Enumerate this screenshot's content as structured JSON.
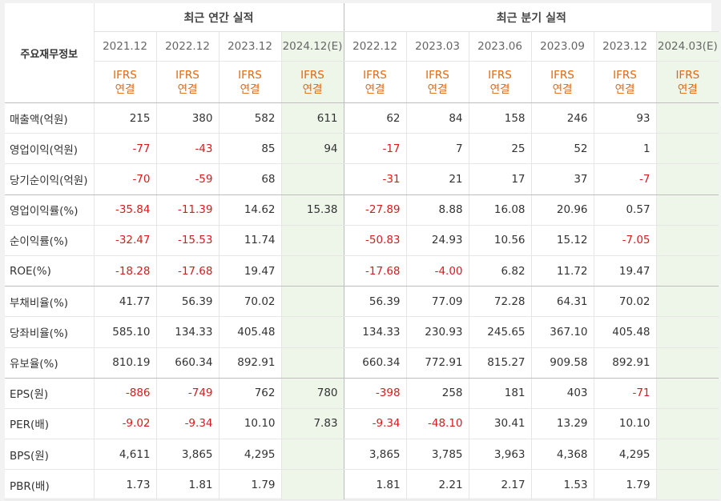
{
  "header": {
    "corner_label": "주요재무정보",
    "annual_title": "최근 연간 실적",
    "quarterly_title": "최근 분기 실적",
    "annual_periods": [
      "2021.12",
      "2022.12",
      "2023.12",
      "2024.12(E)"
    ],
    "quarterly_periods": [
      "2022.12",
      "2023.03",
      "2023.06",
      "2023.09",
      "2023.12",
      "2024.03(E)"
    ],
    "ifrs_line1": "IFRS",
    "ifrs_line2": "연결"
  },
  "colors": {
    "negative": "#d21e1e",
    "ifrs": "#e2660b",
    "estimate_bg": "#eef6ea"
  },
  "rows": [
    {
      "label": "매출액(억원)",
      "values": [
        "215",
        "380",
        "582",
        "611",
        "62",
        "84",
        "158",
        "246",
        "93",
        ""
      ]
    },
    {
      "label": "영업이익(억원)",
      "values": [
        "-77",
        "-43",
        "85",
        "94",
        "-17",
        "7",
        "25",
        "52",
        "1",
        ""
      ]
    },
    {
      "label": "당기순이익(억원)",
      "values": [
        "-70",
        "-59",
        "68",
        "",
        "-31",
        "21",
        "17",
        "37",
        "-7",
        ""
      ]
    },
    {
      "label": "영업이익률(%)",
      "values": [
        "-35.84",
        "-11.39",
        "14.62",
        "15.38",
        "-27.89",
        "8.88",
        "16.08",
        "20.96",
        "0.57",
        ""
      ]
    },
    {
      "label": "순이익률(%)",
      "values": [
        "-32.47",
        "-15.53",
        "11.74",
        "",
        "-50.83",
        "24.93",
        "10.56",
        "15.12",
        "-7.05",
        ""
      ]
    },
    {
      "label": "ROE(%)",
      "values": [
        "-18.28",
        "-17.68",
        "19.47",
        "",
        "-17.68",
        "-4.00",
        "6.82",
        "11.72",
        "19.47",
        ""
      ]
    },
    {
      "label": "부채비율(%)",
      "values": [
        "41.77",
        "56.39",
        "70.02",
        "",
        "56.39",
        "77.09",
        "72.28",
        "64.31",
        "70.02",
        ""
      ]
    },
    {
      "label": "당좌비율(%)",
      "values": [
        "585.10",
        "134.33",
        "405.48",
        "",
        "134.33",
        "230.93",
        "245.65",
        "367.10",
        "405.48",
        ""
      ]
    },
    {
      "label": "유보율(%)",
      "values": [
        "810.19",
        "660.34",
        "892.91",
        "",
        "660.34",
        "772.91",
        "815.27",
        "909.58",
        "892.91",
        ""
      ]
    },
    {
      "label": "EPS(원)",
      "values": [
        "-886",
        "-749",
        "762",
        "780",
        "-398",
        "258",
        "181",
        "403",
        "-71",
        ""
      ]
    },
    {
      "label": "PER(배)",
      "values": [
        "-9.02",
        "-9.34",
        "10.10",
        "7.83",
        "-9.34",
        "-48.10",
        "30.41",
        "13.29",
        "10.10",
        ""
      ]
    },
    {
      "label": "BPS(원)",
      "values": [
        "4,611",
        "3,865",
        "4,295",
        "",
        "3,865",
        "3,785",
        "3,963",
        "4,368",
        "4,295",
        ""
      ]
    },
    {
      "label": "PBR(배)",
      "values": [
        "1.73",
        "1.81",
        "1.79",
        "",
        "1.81",
        "2.21",
        "2.17",
        "1.53",
        "1.79",
        ""
      ]
    }
  ]
}
